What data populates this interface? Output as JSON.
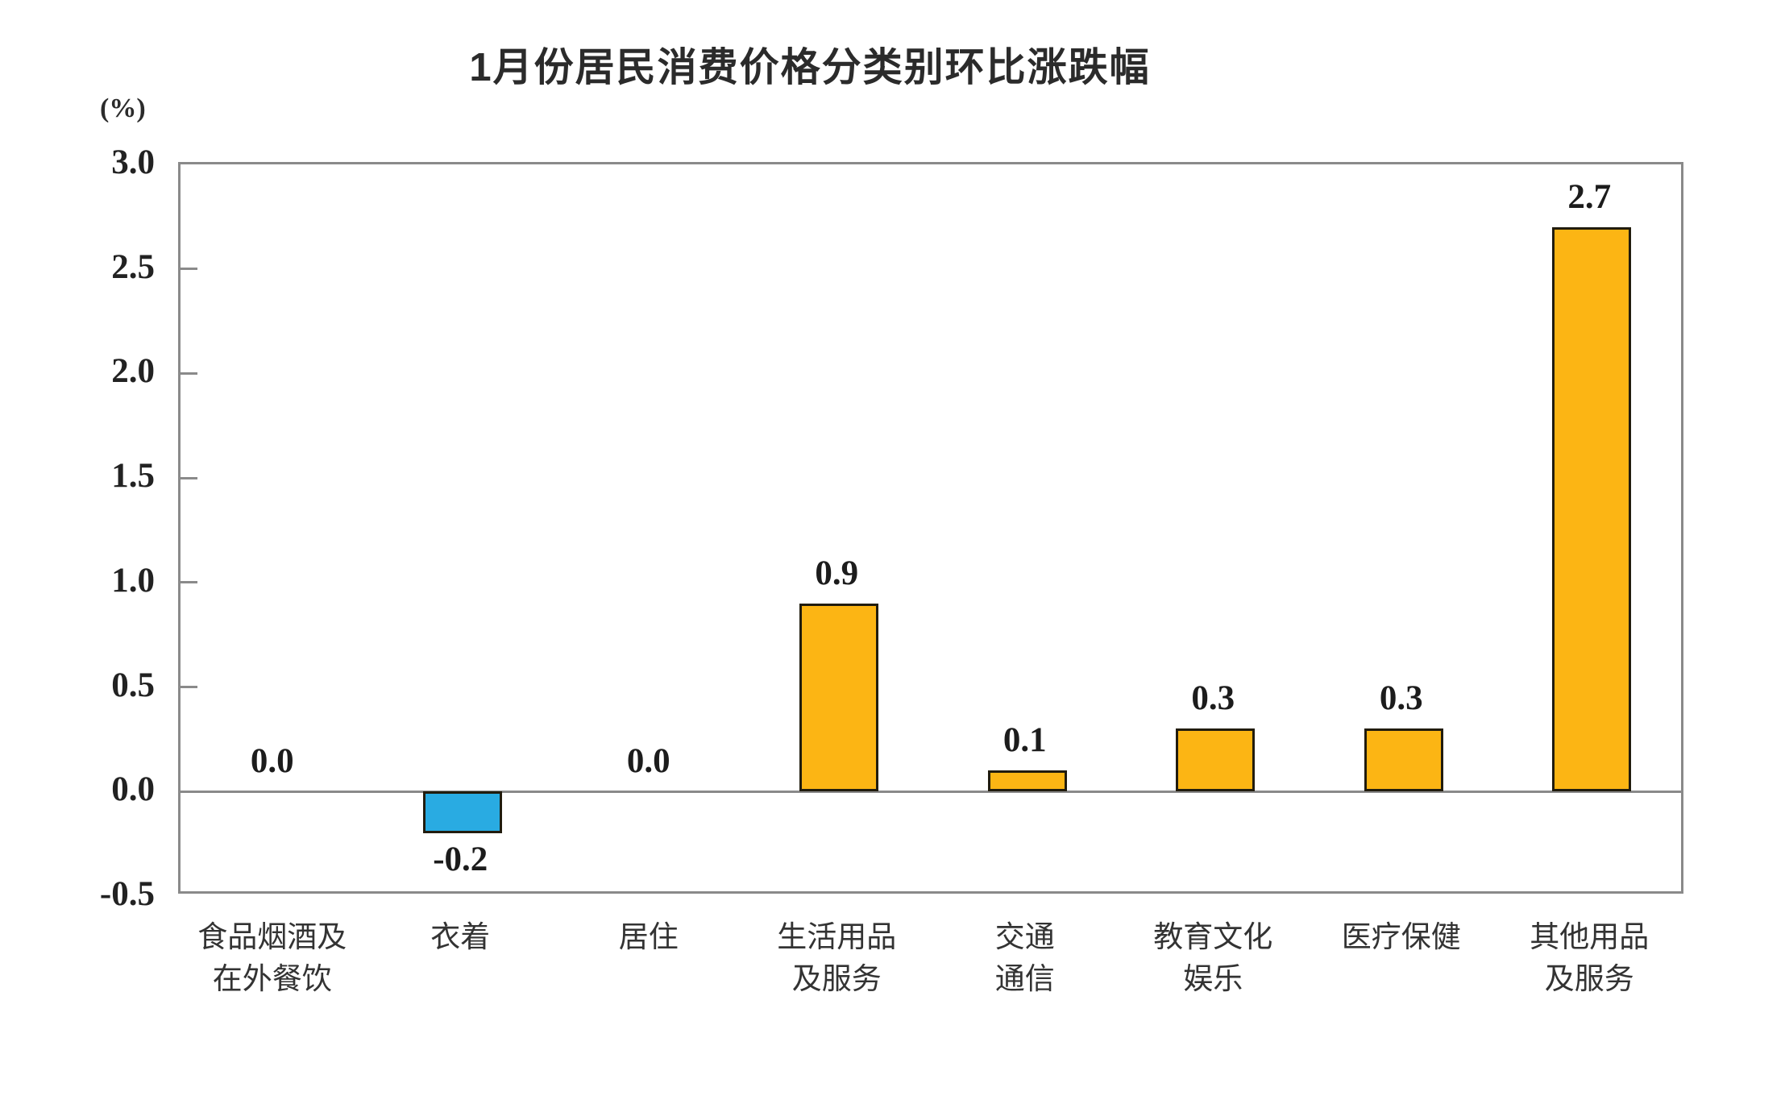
{
  "chart_data": {
    "type": "bar",
    "title": "1月份居民消费价格分类别环比涨跌幅",
    "unit_label": "(%)",
    "categories": [
      "食品烟酒及\n在外餐饮",
      "衣着",
      "居住",
      "生活用品\n及服务",
      "交通\n通信",
      "教育文化\n娱乐",
      "医疗保健",
      "其他用品\n及服务"
    ],
    "values": [
      0.0,
      -0.2,
      0.0,
      0.9,
      0.1,
      0.3,
      0.3,
      2.7
    ],
    "value_labels": [
      "0.0",
      "-0.2",
      "0.0",
      "0.9",
      "0.1",
      "0.3",
      "0.3",
      "2.7"
    ],
    "ylabel": "",
    "xlabel": "",
    "ylim": [
      -0.5,
      3.0
    ],
    "yticks": [
      3.0,
      2.5,
      2.0,
      1.5,
      1.0,
      0.5,
      0.0,
      -0.5
    ],
    "ytick_labels": [
      "3.0",
      "2.5",
      "2.0",
      "1.5",
      "1.0",
      "0.5",
      "0.0",
      "-0.5"
    ],
    "grid": false,
    "legend": "none",
    "colors": {
      "positive_bar": "#fcb514",
      "negative_bar": "#29abe2",
      "bar_border": "#211c0e",
      "axis_frame": "#8a8a8a",
      "text": "#1c1c1c"
    }
  }
}
